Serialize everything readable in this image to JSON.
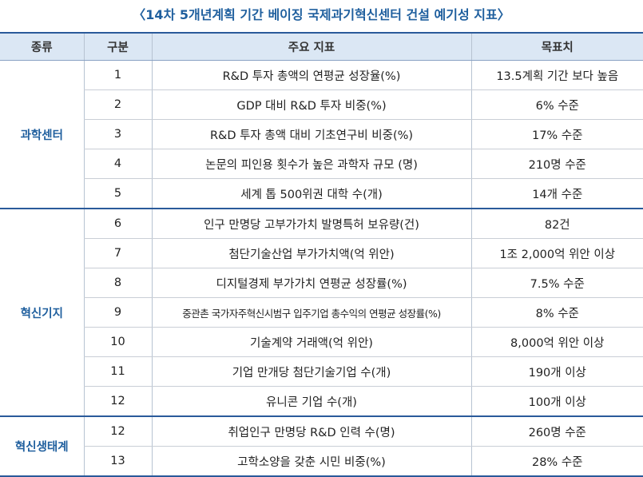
{
  "title": "〈14차 5개년계획 기간 베이징 국제과기혁신센터 건설 예기성 지표〉",
  "table": {
    "headers": [
      "종류",
      "구분",
      "주요 지표",
      "목표치"
    ],
    "groups": [
      {
        "label": "과학센터",
        "rows": [
          [
            "1",
            "R&D 투자 총액의 연평균 성장율(%)",
            "13.5계획 기간 보다 높음"
          ],
          [
            "2",
            "GDP 대비 R&D 투자 비중(%)",
            "6% 수준"
          ],
          [
            "3",
            "R&D 투자 총액 대비 기초연구비 비중(%)",
            "17% 수준"
          ],
          [
            "4",
            "논문의 피인용 횟수가 높은 과학자 규모 (명)",
            "210명 수준"
          ],
          [
            "5",
            "세계 톱 500위권 대학 수(개)",
            "14개 수준"
          ]
        ]
      },
      {
        "label": "혁신기지",
        "rows": [
          [
            "6",
            "인구 만명당 고부가가치 발명특허 보유량(건)",
            "82건"
          ],
          [
            "7",
            "첨단기술산업 부가가치액(억 위안)",
            "1조 2,000억 위안 이상"
          ],
          [
            "8",
            "디지털경제 부가가치 연평균 성장률(%)",
            "7.5% 수준"
          ],
          [
            "9",
            "중관촌 국가자주혁신시범구 입주기업 총수익의 연평균 성장률(%)",
            "8% 수준"
          ],
          [
            "10",
            "기술계약 거래액(억 위안)",
            "8,000억 위안 이상"
          ],
          [
            "11",
            "기업 만개당 첨단기술기업 수(개)",
            "190개 이상"
          ],
          [
            "12",
            "유니콘 기업 수(개)",
            "100개 이상"
          ]
        ]
      },
      {
        "label": "혁신생태계",
        "rows": [
          [
            "12",
            "취업인구 만명당 R&D 인력 수(명)",
            "260명 수준"
          ],
          [
            "13",
            "고학소양을 갖춘 시민 비중(%)",
            "28% 수준"
          ]
        ]
      }
    ]
  }
}
